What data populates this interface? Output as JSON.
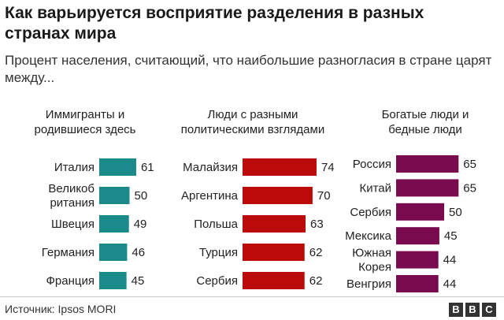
{
  "header": {
    "title": "Как варьируется восприятие разделения в разных странах мира",
    "subtitle": "Процент населения, считающий, что наибольшие разногласия в стране царят между..."
  },
  "footer": {
    "source": "Источник: Ipsos MORI",
    "logo_letters": [
      "B",
      "B",
      "C"
    ]
  },
  "chart_data": [
    {
      "type": "bar",
      "orientation": "horizontal",
      "title": "Иммигранты и родившиеся здесь",
      "title_lines": [
        "Иммигранты и",
        "родившиеся здесь"
      ],
      "color": "#1a8a8a",
      "categories": [
        "Италия",
        "Великобритания",
        "Швеция",
        "Германия",
        "Франция"
      ],
      "category_lines": [
        [
          "Италия"
        ],
        [
          "Великоб",
          "ритания"
        ],
        [
          "Швеция"
        ],
        [
          "Германия"
        ],
        [
          "Франция"
        ]
      ],
      "values": [
        61,
        50,
        49,
        46,
        45
      ]
    },
    {
      "type": "bar",
      "orientation": "horizontal",
      "title": "Люди с разными политическими взглядами",
      "title_lines": [
        "Люди с разными",
        "политическими взглядами"
      ],
      "color": "#bb0a0a",
      "categories": [
        "Малайзия",
        "Аргентина",
        "Польша",
        "Турция",
        "Сербия"
      ],
      "category_lines": [
        [
          "Малайзия"
        ],
        [
          "Аргентина"
        ],
        [
          "Польша"
        ],
        [
          "Турция"
        ],
        [
          "Сербия"
        ]
      ],
      "values": [
        74,
        70,
        63,
        62,
        62
      ]
    },
    {
      "type": "bar",
      "orientation": "horizontal",
      "title": "Богатые люди и бедные люди",
      "title_lines": [
        "Богатые люди и",
        "бедные люди"
      ],
      "color": "#7a0a4e",
      "categories": [
        "Россия",
        "Китай",
        "Сербия",
        "Мексика",
        "Южная Корея",
        "Венгрия"
      ],
      "category_lines": [
        [
          "Россия"
        ],
        [
          "Китай"
        ],
        [
          "Сербия"
        ],
        [
          "Мексика"
        ],
        [
          "Южная",
          "Корея"
        ],
        [
          "Венгрия"
        ]
      ],
      "values": [
        65,
        65,
        50,
        45,
        44,
        44
      ]
    }
  ]
}
